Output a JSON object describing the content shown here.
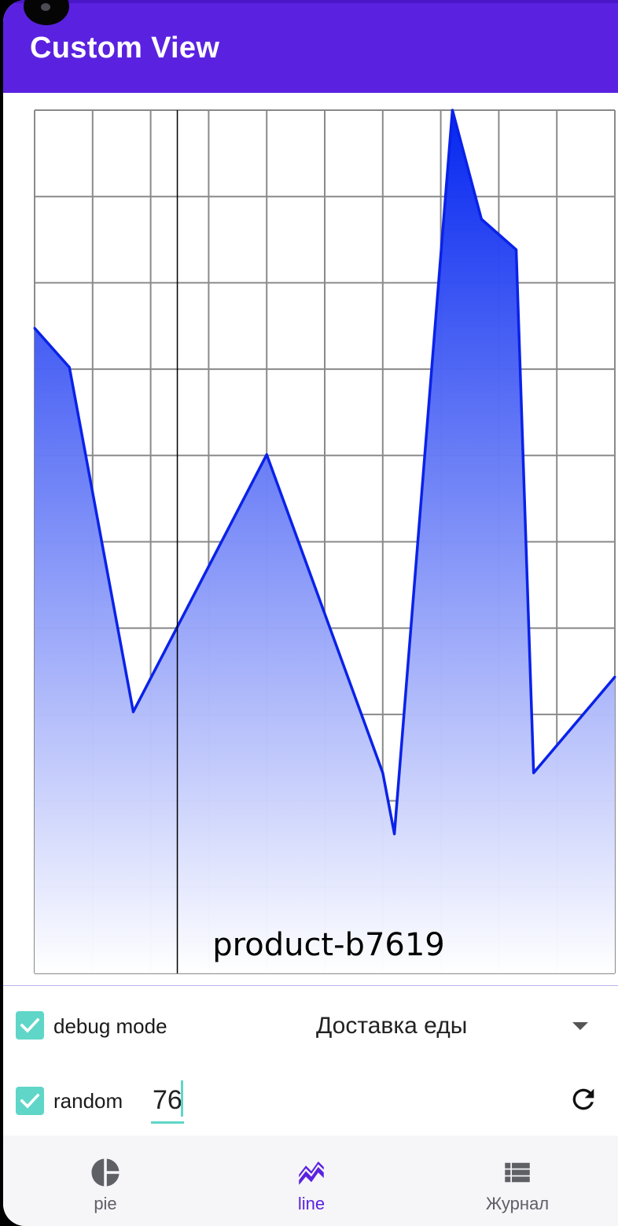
{
  "app": {
    "title": "Custom View",
    "accent_color": "#5a22e0",
    "check_color": "#5fd6c7"
  },
  "chart_data": {
    "type": "area",
    "caption": "product-b7619",
    "x": [
      0,
      0.6,
      1.7,
      4.0,
      6.0,
      6.2,
      7.2,
      7.7,
      8.3,
      8.6,
      10.0
    ],
    "values": [
      7.4,
      6.95,
      3.0,
      5.95,
      2.3,
      1.6,
      9.9,
      8.65,
      8.3,
      2.3,
      3.4
    ],
    "xlim": [
      0,
      10
    ],
    "ylim": [
      0,
      9.9
    ],
    "x_gridlines": 10,
    "y_gridlines": 10,
    "grid": true,
    "highlight_x": 2.46,
    "line_color": "#0a22e8",
    "fill_top_color": "#0022f0",
    "fill_bottom_color": "#ffffff"
  },
  "controls": {
    "debug": {
      "label": "debug mode",
      "checked": true
    },
    "random": {
      "label": "random",
      "checked": true
    },
    "category_select": {
      "value": "Доставка еды"
    },
    "count_input": {
      "value": "76"
    },
    "refresh_icon": "refresh-icon"
  },
  "bottom_nav": {
    "items": [
      {
        "label": "pie",
        "icon": "pie-chart-icon",
        "active": false
      },
      {
        "label": "line",
        "icon": "line-chart-icon",
        "active": true
      },
      {
        "label": "Журнал",
        "icon": "list-icon",
        "active": false
      }
    ]
  }
}
